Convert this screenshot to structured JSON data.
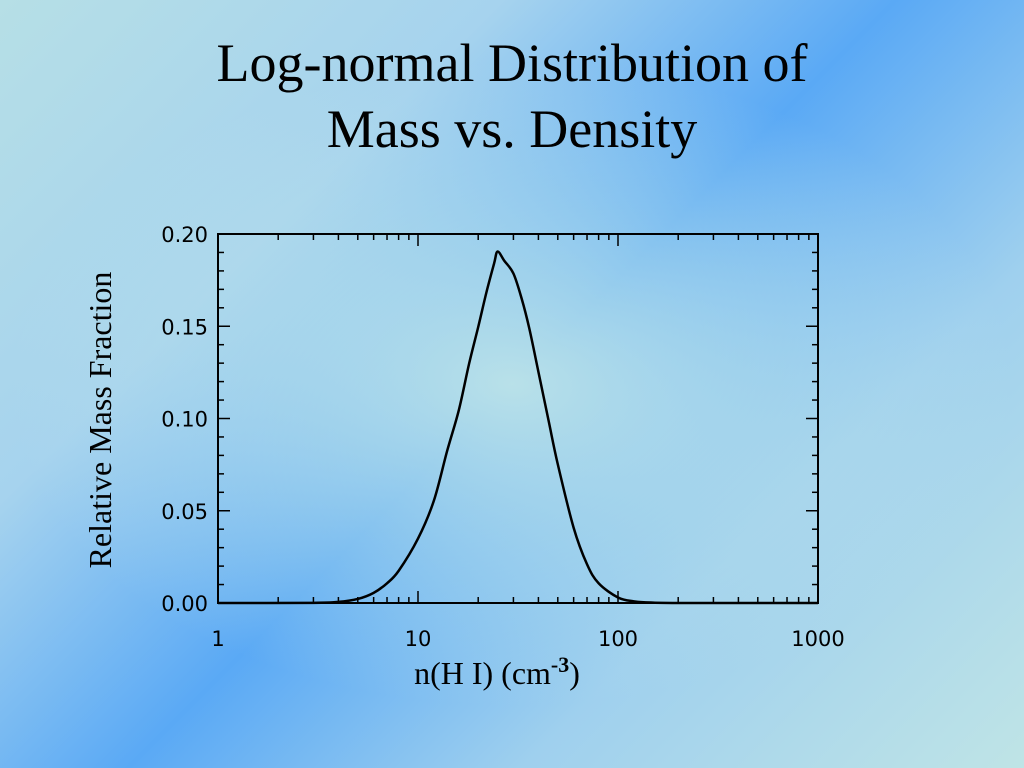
{
  "slide": {
    "title_line1": "Log-normal Distribution of",
    "title_line2": "Mass vs. Density"
  },
  "chart_data": {
    "type": "line",
    "xscale": "log",
    "xlim": [
      1,
      1000
    ],
    "ylim": [
      0.0,
      0.2
    ],
    "xlabel": "n(H I) (cm",
    "xlabel_superscript": "-3",
    "xlabel_suffix": ")",
    "ylabel": "Relative Mass Fraction",
    "x_tick_labels": [
      "1",
      "10",
      "100",
      "1000"
    ],
    "x_ticks": [
      1,
      10,
      100,
      1000
    ],
    "y_tick_labels": [
      "0.00",
      "0.05",
      "0.10",
      "0.15",
      "0.20"
    ],
    "y_ticks": [
      0.0,
      0.05,
      0.1,
      0.15,
      0.2
    ],
    "grid": false,
    "series": [
      {
        "x": [
          1,
          3,
          4,
          5,
          6,
          7,
          8,
          10,
          12,
          14,
          16,
          18,
          20,
          22,
          24,
          25,
          27,
          30,
          33,
          36,
          40,
          45,
          50,
          60,
          70,
          80,
          100,
          120,
          150,
          200,
          300,
          1000
        ],
        "y": [
          0.0,
          0.0001,
          0.0006,
          0.0022,
          0.0055,
          0.0107,
          0.0174,
          0.0349,
          0.0554,
          0.0826,
          0.1045,
          0.1296,
          0.1496,
          0.1685,
          0.1839,
          0.1905,
          0.1855,
          0.1786,
          0.1649,
          0.1489,
          0.1253,
          0.0987,
          0.0752,
          0.0408,
          0.021,
          0.0107,
          0.003,
          0.0009,
          0.0002,
          0.0,
          0.0,
          0.0
        ],
        "color": "#000000"
      }
    ]
  }
}
